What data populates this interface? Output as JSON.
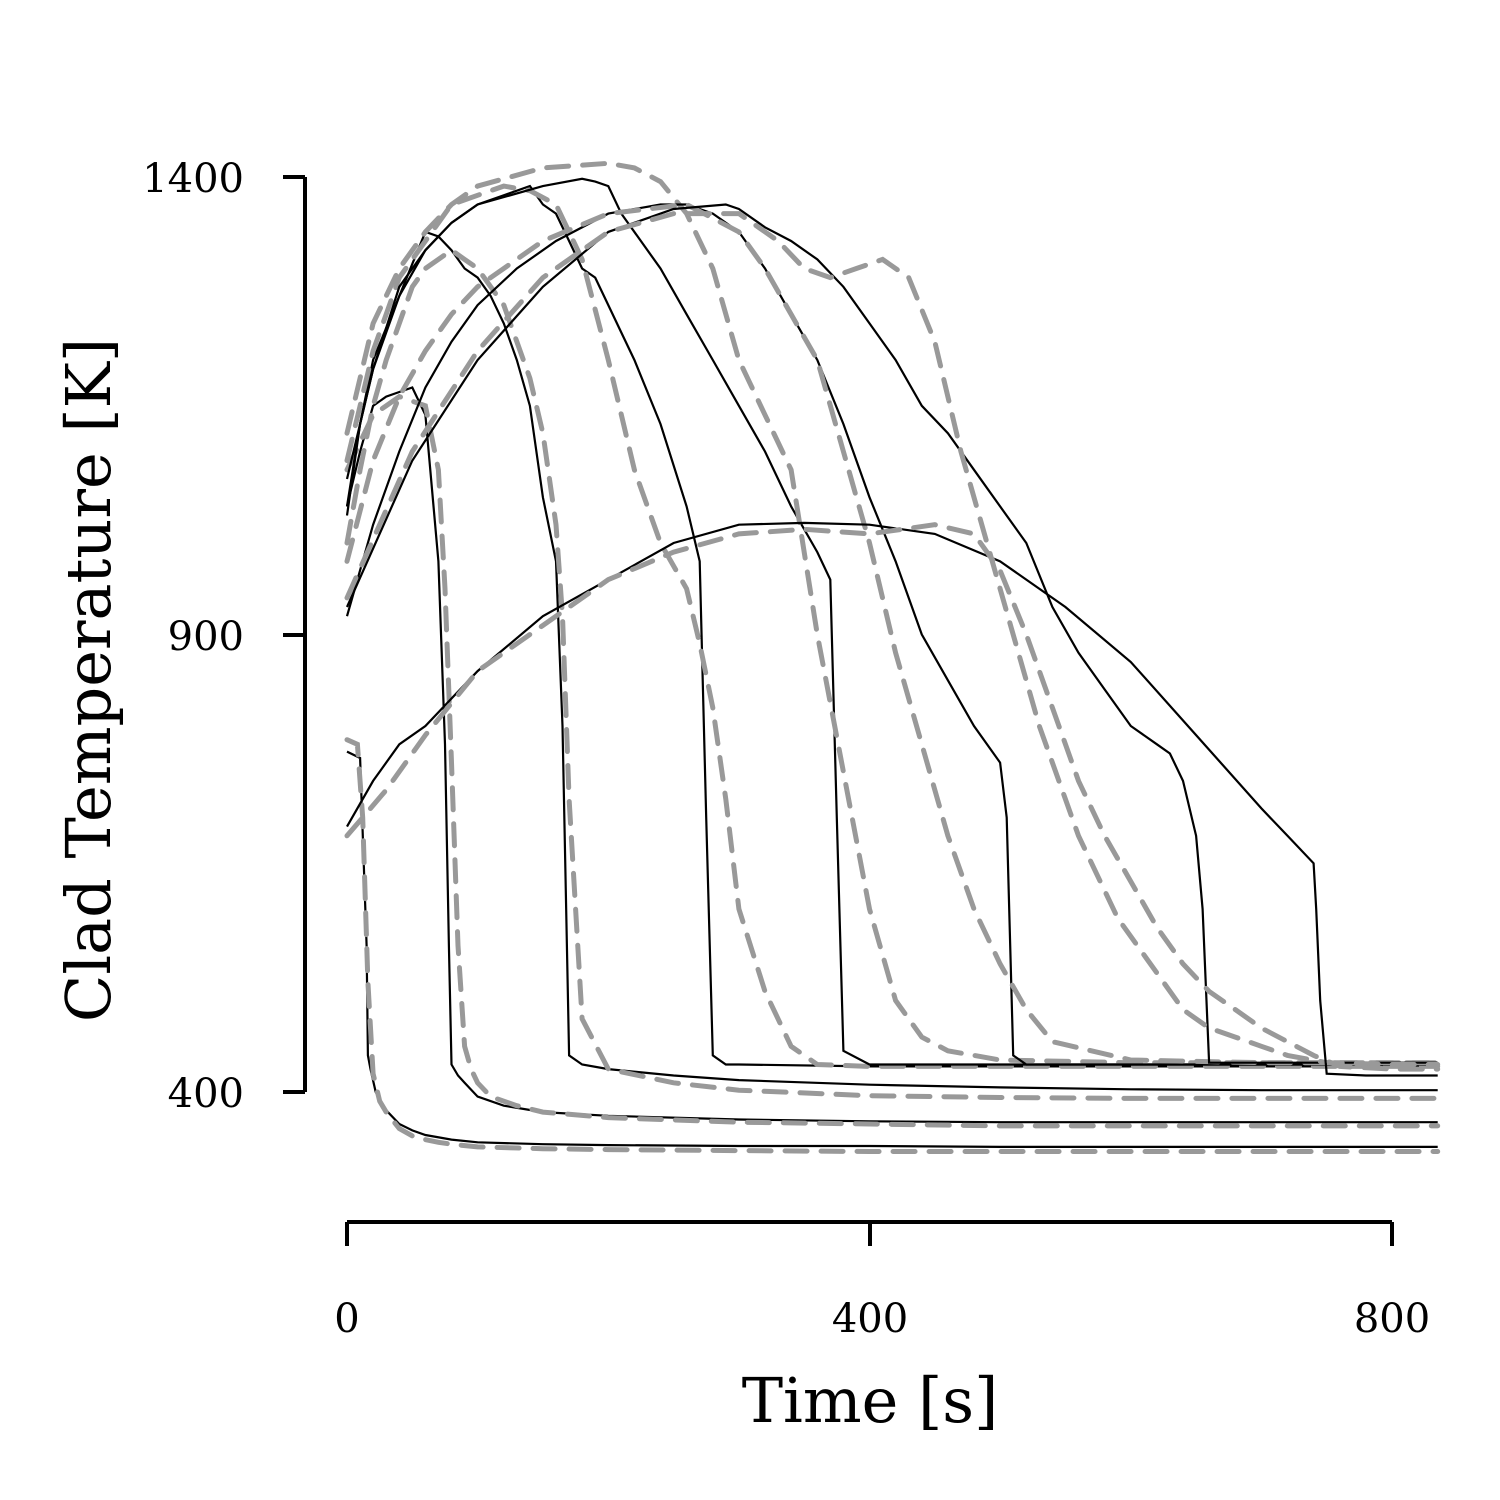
{
  "chart_data": {
    "type": "line",
    "xlabel": "Time [s]",
    "ylabel": "Clad Temperature [K]",
    "xlim": [
      0,
      835
    ],
    "ylim": [
      260,
      1400
    ],
    "xticks": [
      0,
      400,
      800
    ],
    "yticks": [
      400,
      900,
      1400
    ],
    "x_tick_labels": [
      "0",
      "400",
      "800"
    ],
    "y_tick_labels": [
      "400",
      "900",
      "1400"
    ],
    "colors": {
      "measured": "#000000",
      "predicted": "#999999"
    },
    "series": [
      {
        "style": "measured",
        "x": [
          0,
          10,
          15,
          16,
          18,
          22,
          30,
          40,
          50,
          60,
          80,
          100,
          150,
          200,
          300,
          400,
          500,
          600,
          700,
          835
        ],
        "y": [
          772,
          765,
          560,
          440,
          425,
          400,
          380,
          365,
          358,
          353,
          348,
          345,
          343,
          342,
          341,
          341,
          340,
          340,
          340,
          340
        ]
      },
      {
        "style": "predicted",
        "x": [
          0,
          8,
          12,
          16,
          20,
          25,
          30,
          40,
          50,
          60,
          70,
          80,
          100,
          150,
          200,
          300,
          400,
          500,
          600,
          700,
          835
        ],
        "y": [
          785,
          780,
          700,
          520,
          420,
          390,
          378,
          360,
          352,
          348,
          345,
          343,
          340,
          338,
          337,
          336,
          335,
          335,
          335,
          335,
          335
        ]
      },
      {
        "style": "measured",
        "x": [
          0,
          10,
          20,
          30,
          40,
          50,
          60,
          70,
          75,
          78,
          80,
          85,
          90,
          100,
          120,
          150,
          200,
          300,
          400,
          500,
          600,
          700,
          835
        ],
        "y": [
          1040,
          1100,
          1150,
          1160,
          1165,
          1170,
          1140,
          980,
          780,
          560,
          430,
          418,
          410,
          395,
          385,
          378,
          374,
          370,
          368,
          367,
          367,
          367,
          367
        ]
      },
      {
        "style": "predicted",
        "x": [
          0,
          10,
          20,
          30,
          40,
          60,
          70,
          75,
          80,
          85,
          90,
          95,
          100,
          110,
          130,
          150,
          200,
          300,
          400,
          500,
          600,
          700,
          835
        ],
        "y": [
          1080,
          1110,
          1140,
          1150,
          1160,
          1150,
          1080,
          950,
          760,
          560,
          450,
          425,
          410,
          395,
          385,
          378,
          372,
          367,
          365,
          363,
          363,
          363,
          363
        ]
      },
      {
        "style": "measured",
        "x": [
          0,
          10,
          20,
          30,
          40,
          50,
          60,
          70,
          80,
          90,
          100,
          110,
          120,
          130,
          140,
          150,
          160,
          165,
          170,
          180,
          200,
          250,
          300,
          400,
          500,
          600,
          700,
          835
        ],
        "y": [
          1030,
          1130,
          1190,
          1230,
          1270,
          1305,
          1340,
          1335,
          1320,
          1300,
          1290,
          1270,
          1240,
          1200,
          1150,
          1050,
          980,
          800,
          440,
          430,
          425,
          418,
          413,
          408,
          405,
          403,
          402,
          402
        ]
      },
      {
        "style": "predicted",
        "x": [
          0,
          10,
          20,
          30,
          40,
          50,
          60,
          80,
          90,
          100,
          120,
          140,
          150,
          160,
          165,
          170,
          180,
          200,
          250,
          300,
          400,
          500,
          600,
          700,
          835
        ],
        "y": [
          1000,
          1080,
          1150,
          1200,
          1240,
          1280,
          1300,
          1320,
          1310,
          1300,
          1260,
          1180,
          1120,
          1020,
          920,
          720,
          480,
          425,
          410,
          402,
          396,
          394,
          393,
          393,
          393
        ]
      },
      {
        "style": "measured",
        "x": [
          0,
          10,
          20,
          40,
          60,
          80,
          100,
          120,
          140,
          150,
          160,
          170,
          180,
          190,
          200,
          210,
          220,
          240,
          260,
          270,
          275,
          280,
          290,
          300,
          400,
          500,
          600,
          700,
          835
        ],
        "y": [
          1040,
          1130,
          1200,
          1270,
          1320,
          1350,
          1370,
          1380,
          1390,
          1370,
          1360,
          1330,
          1300,
          1290,
          1260,
          1230,
          1200,
          1130,
          1040,
          980,
          700,
          440,
          430,
          430,
          428,
          428,
          428,
          428,
          428
        ]
      },
      {
        "style": "predicted",
        "x": [
          0,
          10,
          20,
          40,
          60,
          80,
          100,
          120,
          140,
          160,
          180,
          200,
          220,
          240,
          260,
          270,
          280,
          290,
          300,
          320,
          340,
          360,
          400,
          500,
          600,
          700,
          835
        ],
        "y": [
          1090,
          1150,
          1210,
          1290,
          1330,
          1370,
          1380,
          1390,
          1385,
          1370,
          1310,
          1200,
          1080,
          1000,
          950,
          890,
          820,
          720,
          600,
          510,
          450,
          430,
          428,
          428,
          428,
          428,
          428
        ]
      },
      {
        "style": "measured",
        "x": [
          0,
          20,
          40,
          60,
          80,
          100,
          150,
          180,
          190,
          200,
          210,
          240,
          260,
          280,
          300,
          320,
          340,
          360,
          370,
          375,
          380,
          400,
          500,
          600,
          700,
          835
        ],
        "y": [
          1070,
          1190,
          1280,
          1320,
          1350,
          1370,
          1390,
          1398,
          1395,
          1390,
          1360,
          1300,
          1250,
          1200,
          1150,
          1100,
          1040,
          990,
          960,
          700,
          445,
          430,
          430,
          430,
          430,
          430
        ]
      },
      {
        "style": "predicted",
        "x": [
          0,
          20,
          40,
          60,
          80,
          100,
          150,
          200,
          220,
          240,
          260,
          280,
          300,
          320,
          340,
          360,
          380,
          400,
          420,
          440,
          460,
          500,
          600,
          700,
          835
        ],
        "y": [
          1120,
          1240,
          1300,
          1340,
          1370,
          1390,
          1410,
          1415,
          1410,
          1395,
          1360,
          1300,
          1200,
          1140,
          1080,
          900,
          750,
          600,
          500,
          460,
          445,
          435,
          432,
          432,
          432
        ]
      },
      {
        "style": "measured",
        "x": [
          0,
          20,
          40,
          60,
          80,
          100,
          130,
          160,
          200,
          240,
          260,
          280,
          300,
          320,
          340,
          360,
          380,
          400,
          420,
          440,
          460,
          480,
          500,
          505,
          510,
          520,
          600,
          700,
          835
        ],
        "y": [
          920,
          1020,
          1100,
          1170,
          1220,
          1260,
          1300,
          1330,
          1360,
          1370,
          1370,
          1360,
          1340,
          1300,
          1250,
          1200,
          1130,
          1050,
          980,
          900,
          850,
          800,
          760,
          700,
          440,
          430,
          430,
          430,
          430
        ]
      },
      {
        "style": "predicted",
        "x": [
          0,
          20,
          40,
          60,
          80,
          100,
          150,
          200,
          260,
          300,
          320,
          340,
          360,
          380,
          400,
          420,
          440,
          460,
          480,
          500,
          520,
          540,
          600,
          700,
          835
        ],
        "y": [
          980,
          1090,
          1160,
          1210,
          1250,
          1280,
          1330,
          1360,
          1370,
          1340,
          1300,
          1250,
          1200,
          1100,
          1000,
          880,
          780,
          680,
          600,
          540,
          490,
          455,
          435,
          432,
          432
        ]
      },
      {
        "style": "measured",
        "x": [
          0,
          50,
          100,
          150,
          200,
          250,
          290,
          300,
          320,
          340,
          360,
          380,
          400,
          420,
          440,
          460,
          480,
          500,
          520,
          540,
          560,
          580,
          600,
          620,
          630,
          640,
          650,
          655,
          660,
          700,
          835
        ],
        "y": [
          930,
          1090,
          1200,
          1280,
          1340,
          1365,
          1370,
          1365,
          1345,
          1330,
          1310,
          1280,
          1240,
          1200,
          1150,
          1120,
          1080,
          1040,
          1000,
          930,
          880,
          840,
          800,
          780,
          770,
          740,
          680,
          600,
          432,
          432,
          432
        ]
      },
      {
        "style": "predicted",
        "x": [
          0,
          50,
          100,
          150,
          200,
          250,
          300,
          330,
          350,
          370,
          390,
          410,
          430,
          450,
          470,
          500,
          530,
          560,
          590,
          620,
          640,
          660,
          680,
          700,
          720,
          750,
          800,
          835
        ],
        "y": [
          940,
          1100,
          1210,
          1290,
          1340,
          1360,
          1360,
          1330,
          1300,
          1290,
          1300,
          1310,
          1290,
          1220,
          1100,
          950,
          800,
          680,
          590,
          530,
          490,
          470,
          460,
          450,
          440,
          432,
          430,
          430
        ]
      },
      {
        "style": "measured",
        "x": [
          0,
          20,
          40,
          60,
          80,
          100,
          150,
          200,
          250,
          300,
          350,
          400,
          450,
          500,
          550,
          600,
          650,
          700,
          720,
          740,
          742,
          745,
          750,
          780,
          835
        ],
        "y": [
          690,
          740,
          780,
          800,
          830,
          860,
          920,
          960,
          1000,
          1020,
          1022,
          1020,
          1010,
          980,
          930,
          870,
          790,
          710,
          680,
          650,
          600,
          500,
          420,
          418,
          418
        ]
      },
      {
        "style": "predicted",
        "x": [
          0,
          30,
          60,
          100,
          150,
          200,
          250,
          300,
          350,
          400,
          450,
          480,
          500,
          520,
          540,
          560,
          580,
          600,
          620,
          640,
          660,
          680,
          700,
          720,
          740,
          760,
          800,
          835
        ],
        "y": [
          680,
          730,
          790,
          860,
          910,
          960,
          990,
          1010,
          1015,
          1010,
          1020,
          1010,
          970,
          900,
          820,
          740,
          680,
          630,
          580,
          540,
          510,
          490,
          470,
          455,
          440,
          428,
          425,
          425
        ]
      }
    ]
  }
}
